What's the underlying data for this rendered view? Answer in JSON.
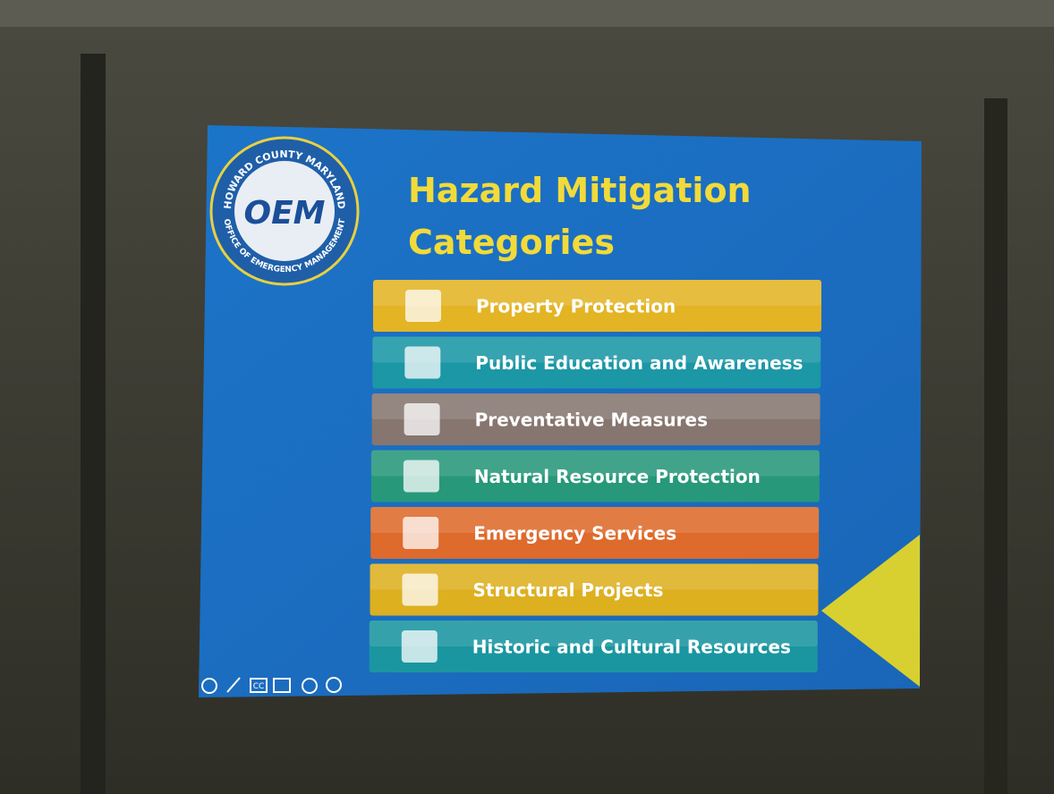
{
  "slide": {
    "title_lines": [
      "Hazard Mitigation",
      "Categories"
    ],
    "logo": {
      "top_text": "HOWARD COUNTY MARYLAND",
      "center_text": "OEM",
      "bottom_text": "OFFICE OF EMERGENCY MANAGEMENT"
    },
    "items": [
      {
        "label": "Property Protection",
        "color": "#e3b424"
      },
      {
        "label": "Public Education and Awareness",
        "color": "#1b97a6"
      },
      {
        "label": "Preventative Measures",
        "color": "#86766f"
      },
      {
        "label": "Natural Resource Protection",
        "color": "#27987a"
      },
      {
        "label": "Emergency Services",
        "color": "#de6a2c"
      },
      {
        "label": "Structural Projects",
        "color": "#ddb020"
      },
      {
        "label": "Historic and Cultural Resources",
        "color": "#1a96a0"
      }
    ],
    "controls": {
      "cc": "CC"
    }
  }
}
